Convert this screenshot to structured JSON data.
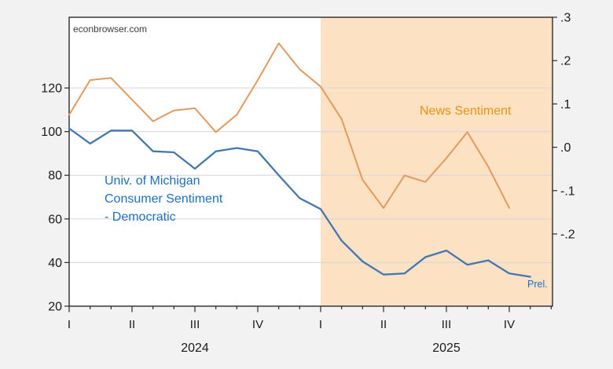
{
  "watermark": "econbrowser.com",
  "annotations": {
    "news_label": "News Sentiment",
    "umich_label_line1": "Univ. of Michigan",
    "umich_label_line2": "Consumer Sentiment",
    "umich_label_line3": "- Democratic",
    "prelim_label": "Prel."
  },
  "colors": {
    "background": "#F2F2F2",
    "plot_background": "#FFFFFF",
    "shading": "#FDE1C3",
    "gridline": "#D3D6DC",
    "axis_border": "#2B2B2B",
    "tick_text": "#1A1A1A",
    "blue_line": "#4377B4",
    "blue_text": "#1C6FC4",
    "orange_line": "#E39A5F",
    "orange_text": "#E8920F",
    "watermark_text": "#3A3A3A"
  },
  "chart_data": {
    "type": "line",
    "title": "",
    "x_months": [
      "2024-01",
      "2024-02",
      "2024-03",
      "2024-04",
      "2024-05",
      "2024-06",
      "2024-07",
      "2024-08",
      "2024-09",
      "2024-10",
      "2024-11",
      "2024-12",
      "2025-01",
      "2025-02",
      "2025-03",
      "2025-04",
      "2025-05",
      "2025-06",
      "2025-07",
      "2025-08",
      "2025-09",
      "2025-10",
      "2025-11"
    ],
    "series": [
      {
        "name": "Univ. of Michigan Consumer Sentiment - Democratic",
        "axis": "left",
        "color_key": "blue_line",
        "values": [
          101.5,
          94.5,
          100.5,
          100.5,
          91,
          90.5,
          83,
          91,
          92.5,
          91,
          80,
          69.5,
          64.5,
          50,
          40.5,
          34.5,
          35,
          42.5,
          45.5,
          39,
          41,
          35,
          33.5
        ],
        "last_point_note": "Prel."
      },
      {
        "name": "News Sentiment",
        "axis": "right",
        "color_key": "orange_line",
        "values": [
          0.075,
          0.155,
          0.16,
          0.11,
          0.06,
          0.085,
          0.09,
          0.035,
          0.075,
          0.155,
          0.24,
          0.18,
          0.14,
          0.065,
          -0.075,
          -0.14,
          -0.065,
          -0.08,
          -0.025,
          0.035,
          -0.045,
          -0.14,
          null
        ]
      }
    ],
    "left_axis": {
      "ticks": [
        20,
        40,
        60,
        80,
        100,
        120
      ],
      "range": [
        20,
        152.4
      ],
      "gridline_values": [
        40,
        60,
        80,
        100,
        120
      ]
    },
    "right_axis": {
      "ticks": [
        {
          "value": 0.3,
          "label": ".3"
        },
        {
          "value": 0.2,
          "label": ".2"
        },
        {
          "value": 0.1,
          "label": ".1"
        },
        {
          "value": 0.0,
          "label": ".0"
        },
        {
          "value": -0.1,
          "label": "-.1"
        },
        {
          "value": -0.2,
          "label": "-.2"
        }
      ],
      "range": [
        -0.3667,
        0.3
      ]
    },
    "x_axis": {
      "quarter_labels": [
        {
          "month_index": 0,
          "label": "I"
        },
        {
          "month_index": 3,
          "label": "II"
        },
        {
          "month_index": 6,
          "label": "III"
        },
        {
          "month_index": 9,
          "label": "IV"
        },
        {
          "month_index": 12,
          "label": "I"
        },
        {
          "month_index": 15,
          "label": "II"
        },
        {
          "month_index": 18,
          "label": "III"
        },
        {
          "month_index": 21,
          "label": "IV"
        }
      ],
      "year_labels": [
        {
          "month_index": 6,
          "label": "2024"
        },
        {
          "month_index": 18,
          "label": "2025"
        }
      ]
    },
    "shading": {
      "start_month_index": 12
    },
    "grid": true,
    "legend_position": "in-plot text labels"
  }
}
